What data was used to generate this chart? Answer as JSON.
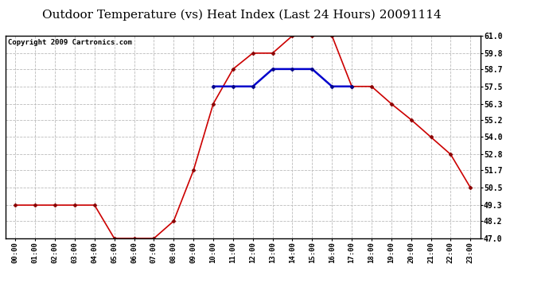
{
  "title": "Outdoor Temperature (vs) Heat Index (Last 24 Hours) 20091114",
  "copyright": "Copyright 2009 Cartronics.com",
  "hours": [
    "00:00",
    "01:00",
    "02:00",
    "03:00",
    "04:00",
    "05:00",
    "06:00",
    "07:00",
    "08:00",
    "09:00",
    "10:00",
    "11:00",
    "12:00",
    "13:00",
    "14:00",
    "15:00",
    "16:00",
    "17:00",
    "18:00",
    "19:00",
    "20:00",
    "21:00",
    "22:00",
    "23:00"
  ],
  "red_values": [
    49.3,
    49.3,
    49.3,
    49.3,
    49.3,
    47.0,
    47.0,
    47.0,
    48.2,
    51.7,
    56.3,
    58.7,
    59.8,
    59.8,
    61.0,
    61.0,
    61.0,
    57.5,
    57.5,
    56.3,
    55.2,
    54.0,
    52.8,
    50.5
  ],
  "blue_values": [
    null,
    null,
    null,
    null,
    null,
    null,
    null,
    null,
    null,
    null,
    57.5,
    57.5,
    57.5,
    58.7,
    58.7,
    58.7,
    57.5,
    57.5,
    null,
    null,
    null,
    null,
    null,
    null
  ],
  "ylim": [
    47.0,
    61.0
  ],
  "yticks": [
    47.0,
    48.2,
    49.3,
    50.5,
    51.7,
    52.8,
    54.0,
    55.2,
    56.3,
    57.5,
    58.7,
    59.8,
    61.0
  ],
  "red_color": "#cc0000",
  "blue_color": "#0000cc",
  "grid_color": "#bbbbbb",
  "bg_color": "#ffffff",
  "title_fontsize": 11,
  "copyright_fontsize": 6.5
}
